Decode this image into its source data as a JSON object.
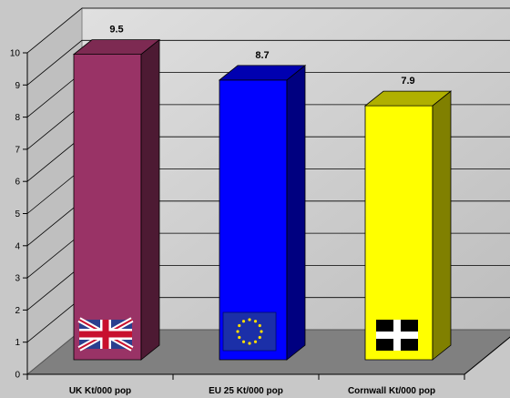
{
  "chart_data": {
    "type": "bar",
    "categories": [
      "UK Kt/000 pop",
      "EU 25  Kt/000 pop",
      "Cornwall Kt/000 pop"
    ],
    "values": [
      9.5,
      8.7,
      7.9
    ],
    "data_labels": [
      "9.5",
      "8.7",
      "7.9"
    ],
    "ylim": [
      0,
      10
    ],
    "yticks": [
      "0",
      "1",
      "2",
      "3",
      "4",
      "5",
      "6",
      "7",
      "8",
      "9",
      "10"
    ],
    "grid": true,
    "legend": "none",
    "style": "3d-column",
    "colors": {
      "uk": "#993366",
      "eu": "#0000ff",
      "cornwall": "#ffff00",
      "wall": "#cccccc",
      "floor": "#808080"
    },
    "bar_decorations": [
      "union-flag-icon",
      "eu-flag-icon",
      "cornwall-flag-icon"
    ]
  }
}
